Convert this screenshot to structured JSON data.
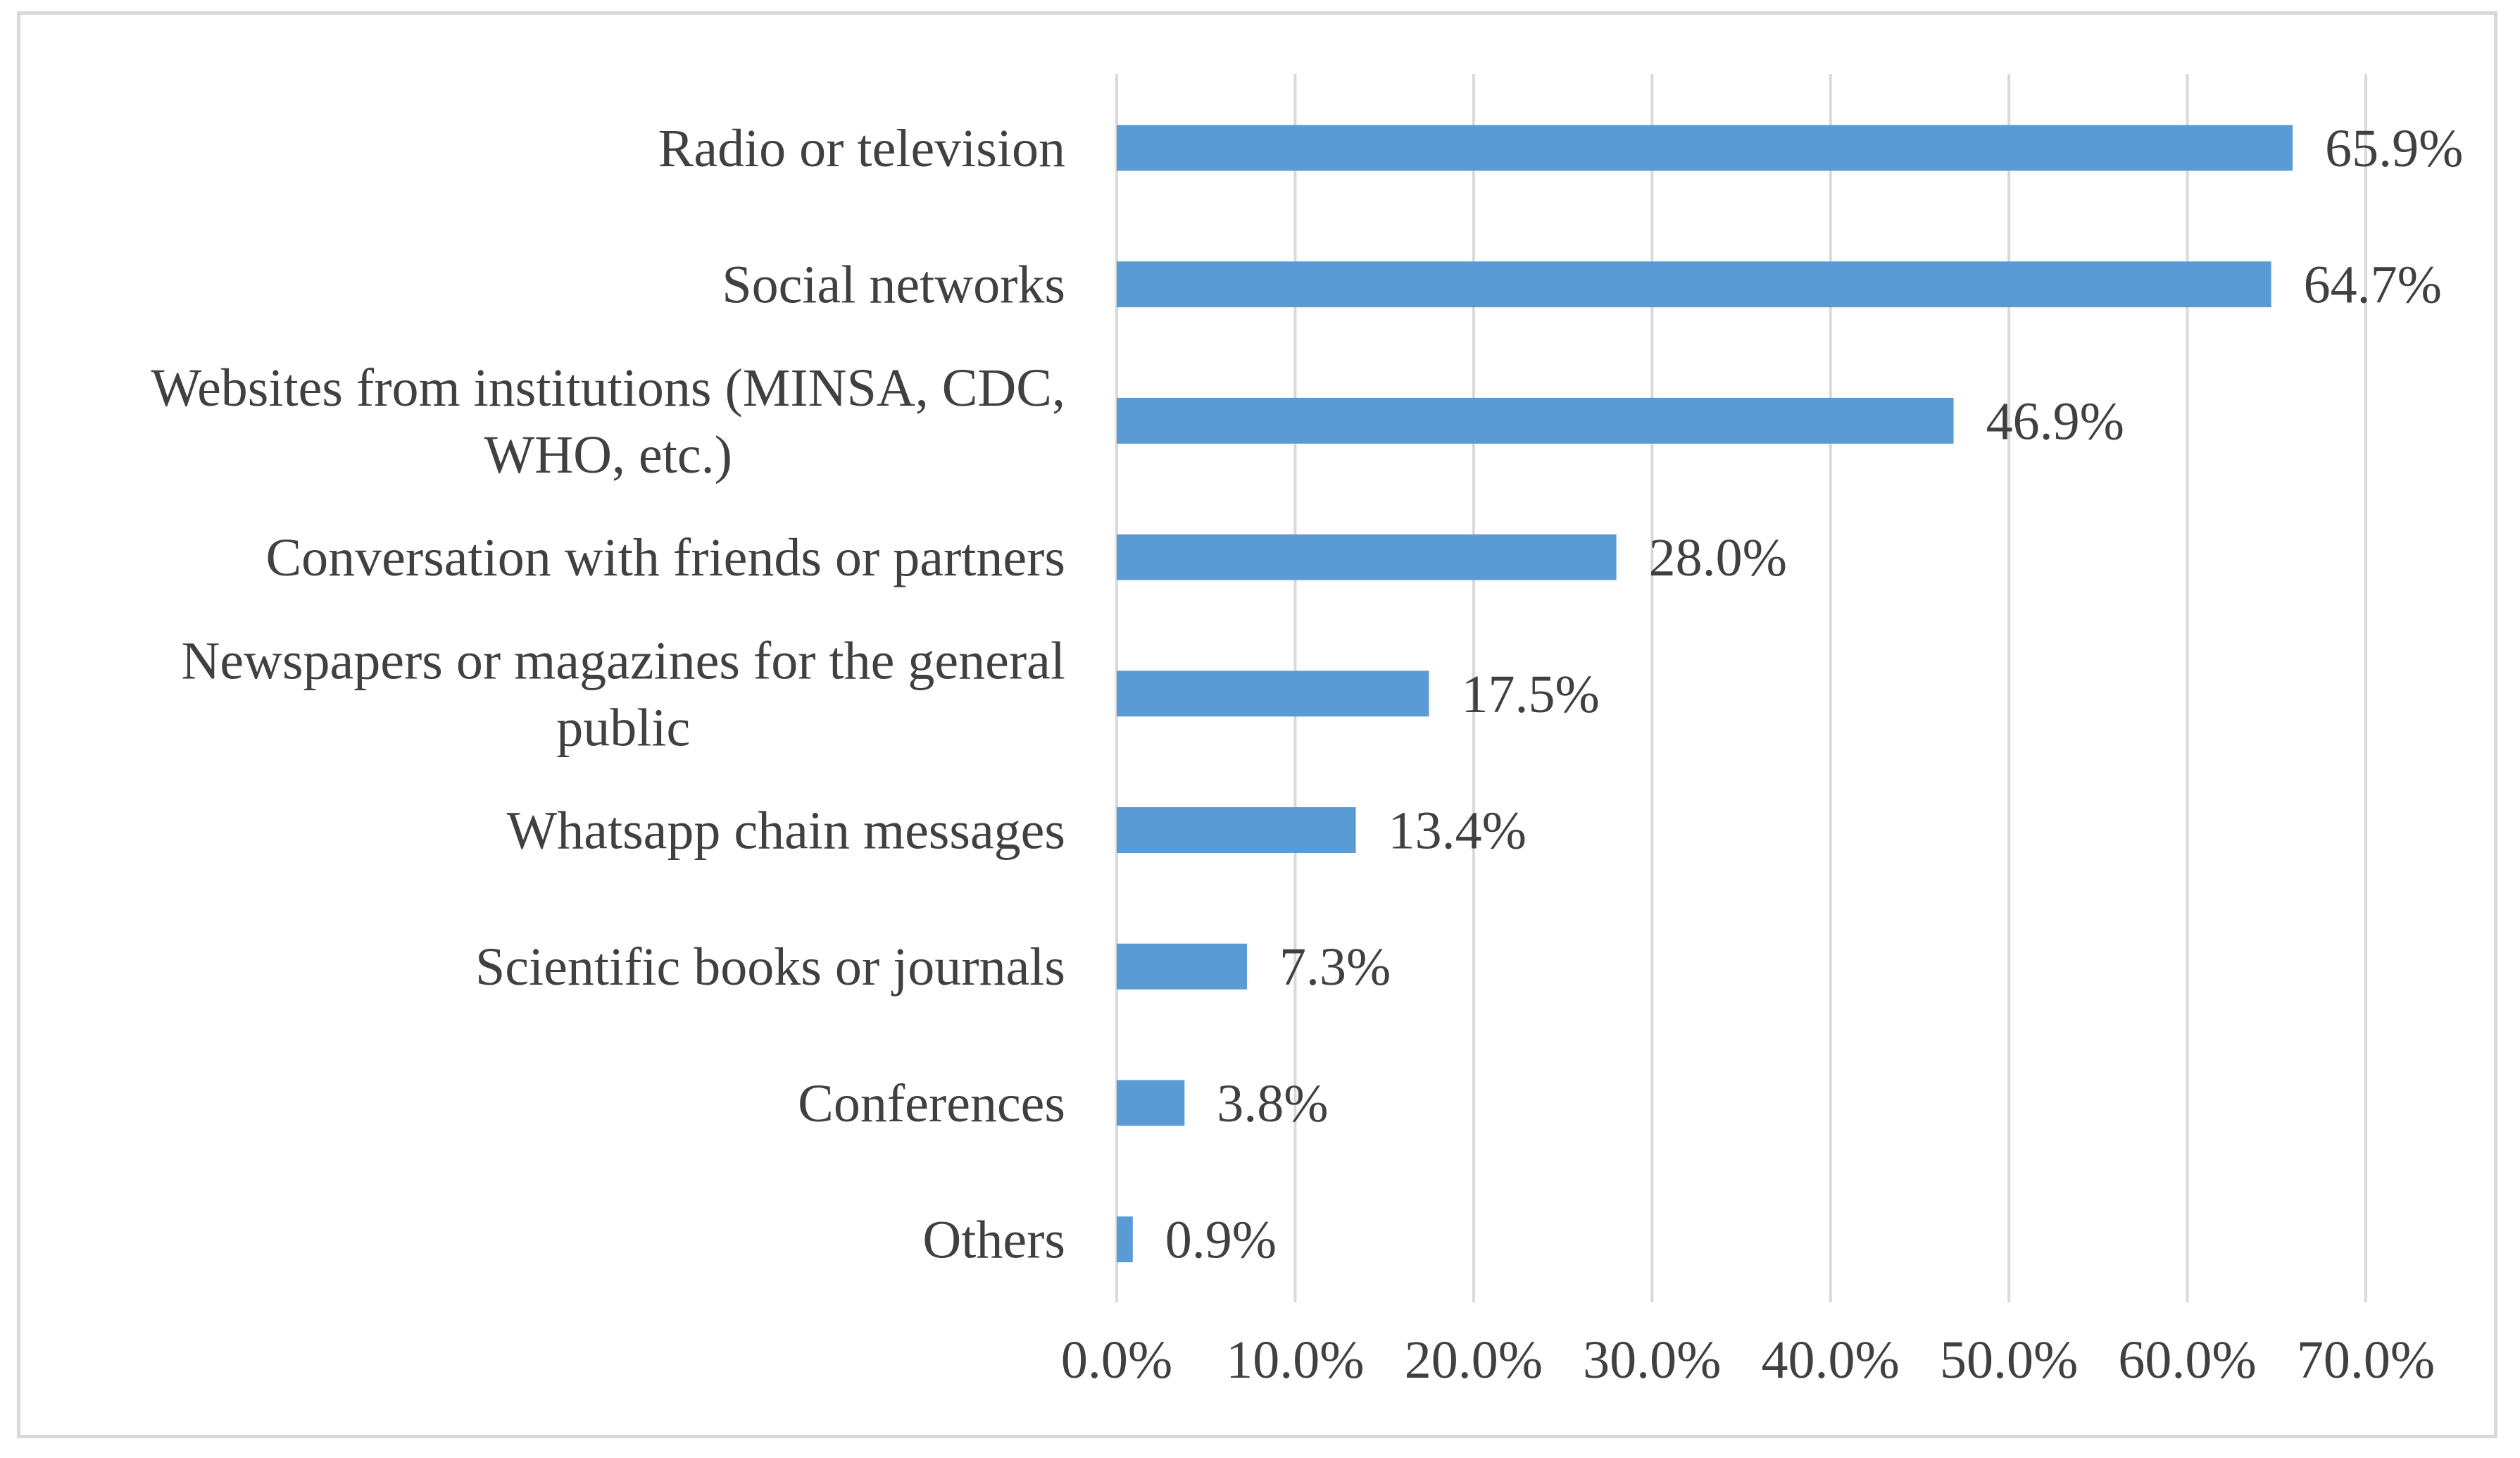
{
  "chart_data": {
    "type": "bar",
    "orientation": "horizontal",
    "title": "",
    "xlabel": "",
    "ylabel": "",
    "xlim": [
      0,
      70
    ],
    "tick_step": 10,
    "tick_labels": [
      "0.0%",
      "10.0%",
      "20.0%",
      "30.0%",
      "40.0%",
      "50.0%",
      "60.0%",
      "70.0%"
    ],
    "grid": "vertical",
    "legend": "none",
    "bar_color": "#5b9bd5",
    "grid_color": "#d9d9d9",
    "text_color": "#404040",
    "categories": [
      [
        "Radio or television"
      ],
      [
        "Social networks"
      ],
      [
        "Websites from institutions (MINSA, CDC,",
        "WHO, etc.)"
      ],
      [
        "Conversation with friends or partners"
      ],
      [
        "Newspapers or magazines for the general",
        "public"
      ],
      [
        "Whatsapp chain messages"
      ],
      [
        "Scientific books or journals"
      ],
      [
        "Conferences"
      ],
      [
        "Others"
      ]
    ],
    "values": [
      65.9,
      64.7,
      46.9,
      28.0,
      17.5,
      13.4,
      7.3,
      3.8,
      0.9
    ],
    "value_labels": [
      "65.9%",
      "64.7%",
      "46.9%",
      "28.0%",
      "17.5%",
      "13.4%",
      "7.3%",
      "3.8%",
      "0.9%"
    ]
  }
}
